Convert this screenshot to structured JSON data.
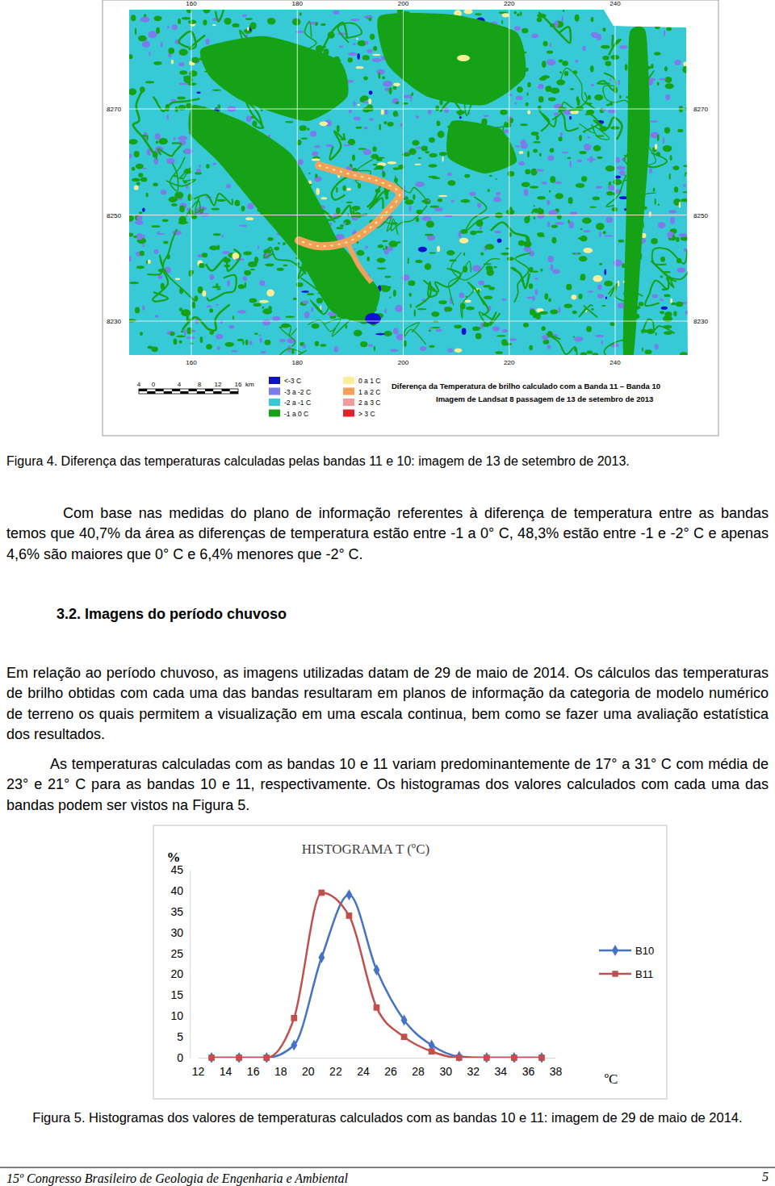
{
  "map_figure": {
    "title": "Diferença da Temperatura de brilho calculado com a Banda 11 – Banda 10",
    "subtitle": "Imagem de Landsat 8 passagem de 13 de setembro de 2013",
    "x_ticks": [
      160,
      180,
      200,
      220,
      240
    ],
    "y_ticks": [
      8270,
      8250,
      8230
    ],
    "legend": [
      {
        "label": "<-3 C",
        "color": "#1010d0"
      },
      {
        "label": "-3 a -2 C",
        "color": "#7b7bea"
      },
      {
        "label": "-2 a -1 C",
        "color": "#38c9d6"
      },
      {
        "label": "-1 a 0 C",
        "color": "#16a216"
      },
      {
        "label": "0 a 1 C",
        "color": "#fbee98"
      },
      {
        "label": "1 a 2 C",
        "color": "#f2a15a"
      },
      {
        "label": "2 a 3 C",
        "color": "#f59a98"
      },
      {
        "label": "> 3 C",
        "color": "#e0202a"
      }
    ],
    "scale_bar": {
      "labels": [
        4,
        0,
        4,
        8,
        12,
        16
      ],
      "unit": "km"
    },
    "caption": "Figura 4. Diferença das temperaturas calculadas pelas bandas 11 e 10: imagem de 13 de setembro de 2013."
  },
  "paragraph_1": "Com base nas medidas do plano de informação referentes à diferença de temperatura entre as bandas temos que 40,7% da área as diferenças de temperatura estão entre -1 a 0° C, 48,3% estão entre -1 e -2° C e apenas 4,6% são maiores que 0° C e 6,4% menores que -2° C.",
  "heading": "3.2. Imagens do período chuvoso",
  "paragraph_2": "Em relação ao período chuvoso, as imagens utilizadas datam de 29 de maio de 2014. Os cálculos das temperaturas de brilho obtidas com cada uma das bandas resultaram em planos de informação da categoria de modelo numérico de terreno os quais permitem a visualização em uma escala continua, bem como se fazer uma avaliação estatística dos resultados.",
  "paragraph_3": "As temperaturas calculadas com as bandas 10 e 11 variam predominantemente de 17° a 31° C com média de 23° e 21° C para as bandas 10 e 11, respectivamente. Os histogramas dos valores calculados com cada uma das bandas podem ser vistos na Figura 5.",
  "chart_data": {
    "type": "line",
    "title": "HISTOGRAMA T (ºC)",
    "y_label": "%",
    "x_label": "ºC",
    "x": [
      13,
      15,
      17,
      19,
      21,
      23,
      25,
      27,
      29,
      31,
      33,
      35,
      37
    ],
    "series": [
      {
        "name": "B10",
        "color": "#4472c4",
        "marker": "diamond",
        "line_style": "smooth",
        "values": [
          0,
          0,
          0,
          3,
          24,
          39,
          21,
          9,
          3,
          0.3,
          0,
          0,
          0
        ]
      },
      {
        "name": "B11",
        "color": "#c0504d",
        "marker": "square",
        "line_style": "smooth",
        "values": [
          0,
          0,
          0,
          9.5,
          39.5,
          34,
          12,
          5,
          1.5,
          0,
          0,
          0,
          0
        ]
      }
    ],
    "xlim": [
      12,
      38
    ],
    "xticks": [
      12,
      14,
      16,
      18,
      20,
      22,
      24,
      26,
      28,
      30,
      32,
      34,
      36,
      38
    ],
    "ylim": [
      0,
      45
    ],
    "yticks": [
      0,
      5,
      10,
      15,
      20,
      25,
      30,
      35,
      40,
      45
    ],
    "grid": false,
    "legend": "right"
  },
  "figure5_caption": "Figura 5. Histogramas dos valores de temperaturas calculados com as bandas 10 e 11: imagem de 29 de maio de 2014.",
  "footer": {
    "text": "15º Congresso Brasileiro de Geologia de Engenharia e Ambiental",
    "page": 5
  }
}
